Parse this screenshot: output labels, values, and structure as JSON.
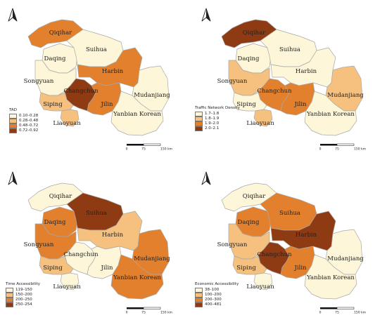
{
  "panels": [
    {
      "legend_title": "TAD",
      "legend_items": [
        "0.10–0.28",
        "0.28–0.48",
        "0.48–0.72",
        "0.72–0.92"
      ],
      "regions": {
        "qiqihar": 2,
        "daqing": 0,
        "suihua": 0,
        "harbin": 2,
        "songyuan": 0,
        "changchun": 3,
        "jilin": 2,
        "mudanjiang": 0,
        "siping": 1,
        "liaoyuan": 1,
        "yanbian": 0
      }
    },
    {
      "legend_title": "Traffic Network Density",
      "legend_items": [
        "1.7–1.8",
        "1.8–1.9",
        "1.9–2.0",
        "2.0–2.1"
      ],
      "regions": {
        "qiqihar": 3,
        "daqing": 0,
        "suihua": 0,
        "harbin": 0,
        "songyuan": 1,
        "changchun": 2,
        "jilin": 2,
        "mudanjiang": 1,
        "siping": 0,
        "liaoyuan": 1,
        "yanbian": 0
      }
    },
    {
      "legend_title": "Time Accessibility",
      "legend_items": [
        "119–150",
        "150–200",
        "200–250",
        "250–254"
      ],
      "regions": {
        "qiqihar": 0,
        "daqing": 2,
        "suihua": 3,
        "harbin": 1,
        "songyuan": 2,
        "changchun": 0,
        "jilin": 0,
        "mudanjiang": 2,
        "siping": 1,
        "liaoyuan": 0,
        "yanbian": 2
      }
    },
    {
      "legend_title": "Economic Accessibility",
      "legend_items": [
        "38–100",
        "100–200",
        "200–300",
        "400–481"
      ],
      "regions": {
        "qiqihar": 0,
        "daqing": 2,
        "suihua": 2,
        "harbin": 3,
        "songyuan": 1,
        "changchun": 3,
        "jilin": 2,
        "mudanjiang": 0,
        "siping": 1,
        "liaoyuan": 0,
        "yanbian": 0
      }
    }
  ],
  "palette": [
    "#fdf6d8",
    "#f6c07f",
    "#e2802e",
    "#8e3a12"
  ],
  "boundary_color": "#a8a8a8",
  "city_names": {
    "qiqihar": "Qiqihar",
    "daqing": "Daqing",
    "suihua": "Suihua",
    "harbin": "Harbin",
    "songyuan": "Songyuan",
    "changchun": "Changchun",
    "jilin": "Jilin",
    "mudanjiang": "Mudanjiang",
    "siping": "Siping",
    "liaoyuan": "Liaoyuan",
    "yanbian": "Yanbian Korean"
  },
  "scale_bar": {
    "ticks": [
      "0",
      "75",
      "150 km"
    ]
  },
  "north_arrow": {
    "icon": "north-arrow-icon"
  }
}
